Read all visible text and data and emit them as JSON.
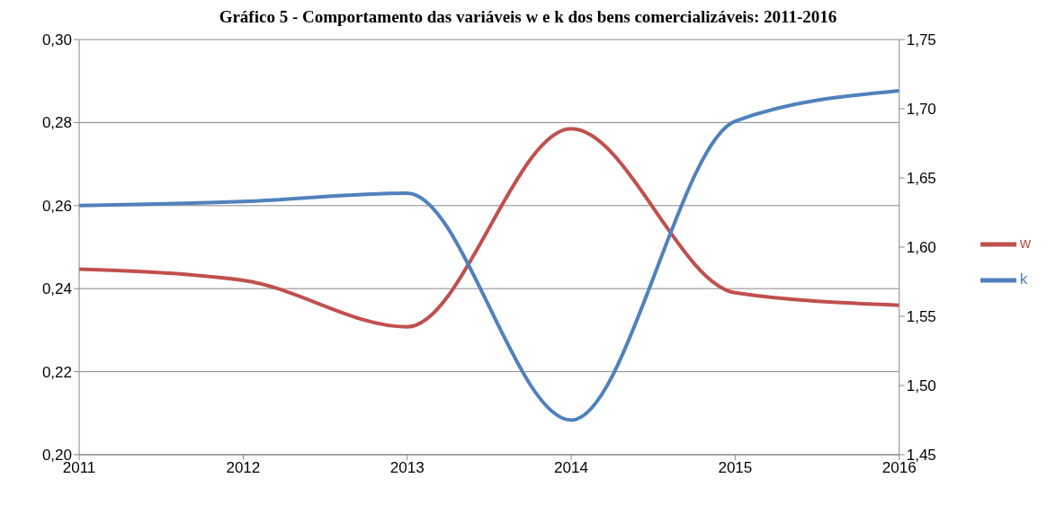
{
  "chart_data": {
    "type": "line",
    "title": "Gráfico 5 - Comportamento das variáveis w e k dos bens comercializáveis: 2011-2016",
    "x": [
      2011,
      2012,
      2013,
      2014,
      2015,
      2016
    ],
    "xlim": [
      2011,
      2016
    ],
    "xticks": [
      2011,
      2012,
      2013,
      2014,
      2015,
      2016
    ],
    "series": [
      {
        "name": "w",
        "color": "#c0504d",
        "values": [
          0.2447,
          0.242,
          0.2308,
          0.2785,
          0.239,
          0.236
        ]
      },
      {
        "name": "k",
        "color": "#4f81bd",
        "axis": "y2",
        "values": [
          1.63,
          1.633,
          1.639,
          1.475,
          1.691,
          1.713
        ]
      }
    ],
    "ylim": [
      0.2,
      0.3
    ],
    "yticks": [
      {
        "value": 0.2,
        "label": "0,20"
      },
      {
        "value": 0.22,
        "label": "0,22"
      },
      {
        "value": 0.24,
        "label": "0,24"
      },
      {
        "value": 0.26,
        "label": "0,26"
      },
      {
        "value": 0.28,
        "label": "0,28"
      },
      {
        "value": 0.3,
        "label": "0,30"
      }
    ],
    "y2lim": [
      1.45,
      1.75
    ],
    "y2ticks": [
      {
        "value": 1.45,
        "label": "1,45"
      },
      {
        "value": 1.5,
        "label": "1,50"
      },
      {
        "value": 1.55,
        "label": "1,55"
      },
      {
        "value": 1.6,
        "label": "1,60"
      },
      {
        "value": 1.65,
        "label": "1,65"
      },
      {
        "value": 1.7,
        "label": "1,70"
      },
      {
        "value": 1.75,
        "label": "1,75"
      }
    ],
    "grid": "y",
    "legend": "right",
    "marker": "none",
    "line_style": "solid"
  }
}
